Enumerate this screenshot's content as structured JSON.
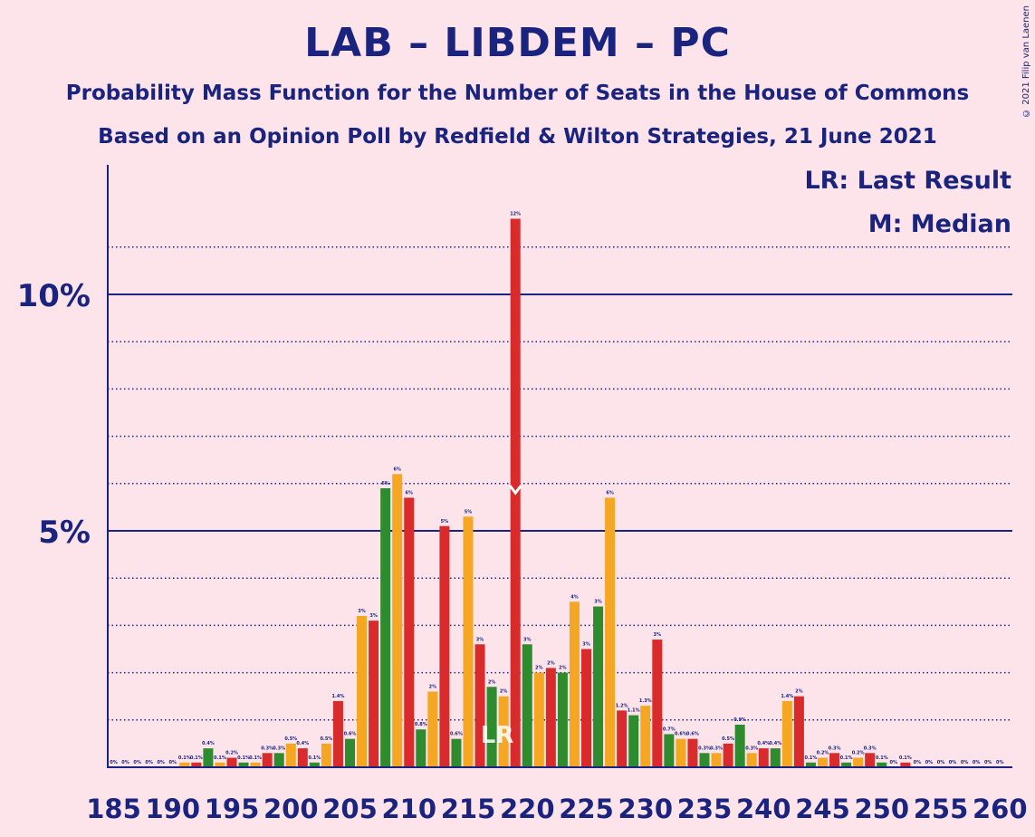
{
  "title": "LAB – LIBDEM – PC",
  "subtitle1": "Probability Mass Function for the Number of Seats in the House of Commons",
  "subtitle2": "Based on an Opinion Poll by Redfield & Wilton Strategies, 21 June 2021",
  "legend_lr": "LR: Last Result",
  "legend_m": "M: Median",
  "copyright": "© 2021 Filip van Laenen",
  "colors": {
    "background": "#fce4ea",
    "axis": "#1a237e",
    "green": "#2e8b2e",
    "orange": "#f5a623",
    "red": "#d92b2b"
  },
  "chart_data": {
    "type": "bar",
    "x": [
      185,
      186,
      187,
      188,
      189,
      190,
      191,
      192,
      193,
      194,
      195,
      196,
      197,
      198,
      199,
      200,
      201,
      202,
      203,
      204,
      205,
      206,
      207,
      208,
      209,
      210,
      211,
      212,
      213,
      214,
      215,
      216,
      217,
      218,
      219,
      220,
      221,
      222,
      223,
      224,
      225,
      226,
      227,
      228,
      229,
      230,
      231,
      232,
      233,
      234,
      235,
      236,
      237,
      238,
      239,
      240,
      241,
      242,
      243,
      244,
      245,
      246,
      247,
      248,
      249,
      250,
      251,
      252,
      253,
      254,
      255,
      256,
      257,
      258,
      259,
      260
    ],
    "values": [
      0,
      0,
      0,
      0,
      0,
      0,
      0.1,
      0.1,
      0.4,
      0.1,
      0.2,
      0.1,
      0.1,
      0.3,
      0.3,
      0.5,
      0.4,
      0.1,
      0.5,
      1.4,
      0.6,
      3.2,
      3.1,
      5.9,
      6.2,
      5.7,
      0.8,
      1.6,
      5.1,
      0.6,
      5.3,
      2.6,
      1.7,
      1.5,
      11.6,
      2.6,
      2.0,
      2.1,
      2.0,
      3.5,
      2.5,
      3.4,
      5.7,
      1.2,
      1.1,
      1.3,
      2.7,
      0.7,
      0.6,
      0.6,
      0.3,
      0.3,
      0.5,
      0.9,
      0.3,
      0.4,
      0.4,
      1.4,
      1.5,
      0.1,
      0.2,
      0.3,
      0.1,
      0.2,
      0.3,
      0.1,
      0,
      0.1,
      0,
      0,
      0,
      0,
      0,
      0,
      0,
      0
    ],
    "labels": [
      "0%",
      "0%",
      "0%",
      "0%",
      "0%",
      "0%",
      "0.1%",
      "0.1%",
      "0.4%",
      "0.1%",
      "0.2%",
      "0.1%",
      "0.1%",
      "0.3%",
      "0.3%",
      "0.5%",
      "0.4%",
      "0.1%",
      "0.5%",
      "1.4%",
      "0.6%",
      "3%",
      "3%",
      "6%",
      "6%",
      "6%",
      "0.8%",
      "2%",
      "5%",
      "0.6%",
      "5%",
      "3%",
      "2%",
      "2%",
      "12%",
      "3%",
      "2%",
      "2%",
      "2%",
      "4%",
      "3%",
      "3%",
      "6%",
      "1.2%",
      "1.1%",
      "1.3%",
      "3%",
      "0.7%",
      "0.6%",
      "0.6%",
      "0.3%",
      "0.3%",
      "0.5%",
      "0.9%",
      "0.3%",
      "0.4%",
      "0.4%",
      "1.4%",
      "2%",
      "0.1%",
      "0.2%",
      "0.3%",
      "0.1%",
      "0.2%",
      "0.3%",
      "0.1%",
      "0%",
      "0.1%",
      "0%",
      "0%",
      "0%",
      "0%",
      "0%",
      "0%",
      "0%",
      "0%"
    ],
    "bar_colors": [
      "green",
      "orange",
      "red"
    ],
    "color_start_seat": 184,
    "y_ticks": [
      {
        "value": 5,
        "label": "5%"
      },
      {
        "value": 10,
        "label": "10%"
      }
    ],
    "y_max": 12.5,
    "x_ticks": [
      185,
      190,
      195,
      200,
      205,
      210,
      215,
      220,
      225,
      230,
      235,
      240,
      245,
      250,
      255,
      260
    ],
    "last_result_seat": 217,
    "last_result_label": "LR",
    "median_seat": 219,
    "median_label": "M",
    "grid": "dotted every 1%, solid at 5% and 10%"
  }
}
